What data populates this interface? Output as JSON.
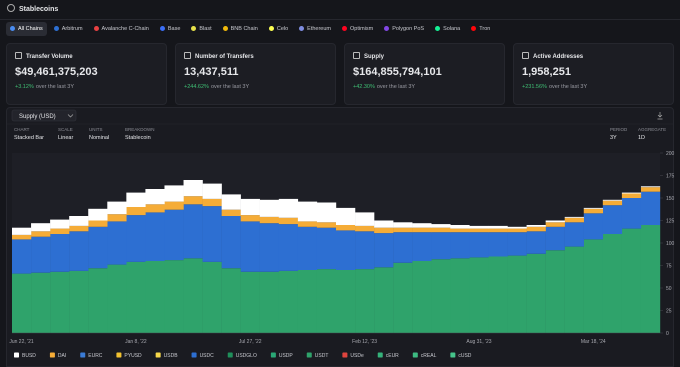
{
  "header": {
    "title": "Stablecoins"
  },
  "tabs": [
    "All Chains",
    "Arbitrum",
    "Avalanche C-Chain",
    "Base",
    "Blast",
    "BNB Chain",
    "Celo",
    "Ethereum",
    "Optimism",
    "Polygon PoS",
    "Solana",
    "Tron"
  ],
  "cards": [
    {
      "title": "Transfer Volume",
      "value": "$49,461,375,203",
      "change": "+3.12%",
      "period": "over the last 3Y"
    },
    {
      "title": "Number of Transfers",
      "value": "13,437,511",
      "change": "+244.62%",
      "period": "over the last 3Y"
    },
    {
      "title": "Supply",
      "value": "$164,855,794,101",
      "change": "+42.30%",
      "period": "over the last 3Y"
    },
    {
      "title": "Active Addresses",
      "value": "1,958,251",
      "change": "+231.56%",
      "period": "over the last 3Y"
    }
  ],
  "panel": {
    "metric": "Supply (USD)",
    "controls": [
      {
        "label": "CHART",
        "value": "Stacked Bar"
      },
      {
        "label": "SCALE",
        "value": "Linear"
      },
      {
        "label": "UNITS",
        "value": "Nominal"
      },
      {
        "label": "BREAKDOWN",
        "value": "Stablecoin"
      }
    ],
    "right_controls": [
      {
        "label": "PERIOD",
        "value": "3Y"
      },
      {
        "label": "AGGREGATE",
        "value": "1D"
      }
    ]
  },
  "chart_data": {
    "type": "stacked_bar",
    "categories": [
      "Jun 22, '21",
      null,
      null,
      null,
      null,
      null,
      "Jan 8, '22",
      null,
      null,
      null,
      null,
      null,
      "Jul 27, '22",
      null,
      null,
      null,
      null,
      null,
      "Feb 12, '23",
      null,
      null,
      null,
      null,
      null,
      "Aug 31, '23",
      null,
      null,
      null,
      null,
      null,
      "Mar 18, '24",
      null,
      null,
      null
    ],
    "ylim": [
      0,
      200
    ],
    "yticks": [
      0,
      25,
      50,
      75,
      100,
      125,
      150,
      175,
      200
    ],
    "grid": false,
    "series": [
      {
        "name": "BUSD",
        "color": "#ffffff",
        "values": [
          8,
          9,
          10,
          11,
          13,
          14,
          16,
          17,
          18,
          18,
          17,
          17,
          18,
          19,
          21,
          22,
          22,
          19,
          15,
          8,
          6,
          5,
          4,
          4,
          3,
          3,
          2,
          2,
          2,
          1,
          1,
          1,
          1,
          1
        ]
      },
      {
        "name": "DAI",
        "color": "#f5ac37",
        "values": [
          5,
          6,
          6,
          6,
          7,
          8,
          9,
          9,
          9,
          9,
          8,
          7,
          7,
          7,
          7,
          6,
          6,
          6,
          6,
          6,
          5,
          5,
          5,
          4,
          4,
          4,
          4,
          5,
          5,
          5,
          5,
          5,
          5,
          5
        ]
      },
      {
        "name": "EURC",
        "color": "#3a7bd5",
        "values": [
          0,
          0,
          0,
          0,
          0,
          0,
          0,
          0,
          0,
          0,
          0,
          0,
          0,
          0,
          0,
          0,
          0,
          0,
          0,
          0,
          0,
          0,
          0,
          0,
          0,
          0,
          0,
          0,
          0,
          0,
          0,
          0,
          0,
          0
        ]
      },
      {
        "name": "PYUSD",
        "color": "#f2c230",
        "values": [
          0,
          0,
          0,
          0,
          0,
          0,
          0,
          0,
          0,
          0,
          0,
          0,
          0,
          0,
          0,
          0,
          0,
          0,
          0,
          0,
          0,
          0,
          0,
          0,
          0,
          0,
          0,
          0,
          0,
          0,
          0,
          0,
          0,
          0
        ]
      },
      {
        "name": "USDB",
        "color": "#f7d84a",
        "values": [
          0,
          0,
          0,
          0,
          0,
          0,
          0,
          0,
          0,
          0,
          0,
          0,
          0,
          0,
          0,
          0,
          0,
          0,
          0,
          0,
          0,
          0,
          0,
          0,
          0,
          0,
          0,
          0,
          0,
          0,
          0,
          0,
          0,
          0
        ]
      },
      {
        "name": "USDC",
        "color": "#2d6fd2",
        "values": [
          38,
          40,
          42,
          44,
          46,
          48,
          52,
          54,
          56,
          60,
          62,
          58,
          56,
          54,
          52,
          48,
          46,
          44,
          42,
          38,
          34,
          32,
          30,
          29,
          28,
          27,
          26,
          25,
          26,
          27,
          29,
          32,
          34,
          37
        ]
      },
      {
        "name": "USDGLO",
        "color": "#1f8f5a",
        "values": [
          0,
          0,
          0,
          0,
          0,
          0,
          0,
          0,
          0,
          0,
          0,
          0,
          0,
          0,
          0,
          0,
          0,
          0,
          0,
          0,
          0,
          0,
          0,
          0,
          0,
          0,
          0,
          0,
          0,
          0,
          0,
          0,
          0,
          0
        ]
      },
      {
        "name": "USDP",
        "color": "#2aa876",
        "values": [
          0,
          0,
          0,
          0,
          0,
          0,
          0,
          0,
          0,
          0,
          0,
          0,
          0,
          0,
          0,
          0,
          0,
          0,
          0,
          0,
          0,
          0,
          0,
          0,
          0,
          0,
          0,
          0,
          0,
          0,
          0,
          0,
          0,
          0
        ]
      },
      {
        "name": "USDT",
        "color": "#2fa36b",
        "values": [
          66,
          67,
          68,
          69,
          72,
          76,
          79,
          80,
          81,
          83,
          79,
          72,
          68,
          68,
          69,
          70,
          71,
          70,
          71,
          73,
          78,
          80,
          82,
          83,
          84,
          85,
          86,
          88,
          92,
          96,
          104,
          110,
          116,
          120
        ]
      },
      {
        "name": "USDe",
        "color": "#e0443e",
        "values": [
          0,
          0,
          0,
          0,
          0,
          0,
          0,
          0,
          0,
          0,
          0,
          0,
          0,
          0,
          0,
          0,
          0,
          0,
          0,
          0,
          0,
          0,
          0,
          0,
          0,
          0,
          0,
          0,
          0,
          0,
          0,
          0,
          0,
          0
        ]
      },
      {
        "name": "cEUR",
        "color": "#35b27a",
        "values": [
          0,
          0,
          0,
          0,
          0,
          0,
          0,
          0,
          0,
          0,
          0,
          0,
          0,
          0,
          0,
          0,
          0,
          0,
          0,
          0,
          0,
          0,
          0,
          0,
          0,
          0,
          0,
          0,
          0,
          0,
          0,
          0,
          0,
          0
        ]
      },
      {
        "name": "cREAL",
        "color": "#3dbb82",
        "values": [
          0,
          0,
          0,
          0,
          0,
          0,
          0,
          0,
          0,
          0,
          0,
          0,
          0,
          0,
          0,
          0,
          0,
          0,
          0,
          0,
          0,
          0,
          0,
          0,
          0,
          0,
          0,
          0,
          0,
          0,
          0,
          0,
          0,
          0
        ]
      },
      {
        "name": "cUSD",
        "color": "#45c48a",
        "values": [
          0,
          0,
          0,
          0,
          0,
          0,
          0,
          0,
          0,
          0,
          0,
          0,
          0,
          0,
          0,
          0,
          0,
          0,
          0,
          0,
          0,
          0,
          0,
          0,
          0,
          0,
          0,
          0,
          0,
          0,
          0,
          0,
          0,
          0
        ]
      }
    ]
  }
}
